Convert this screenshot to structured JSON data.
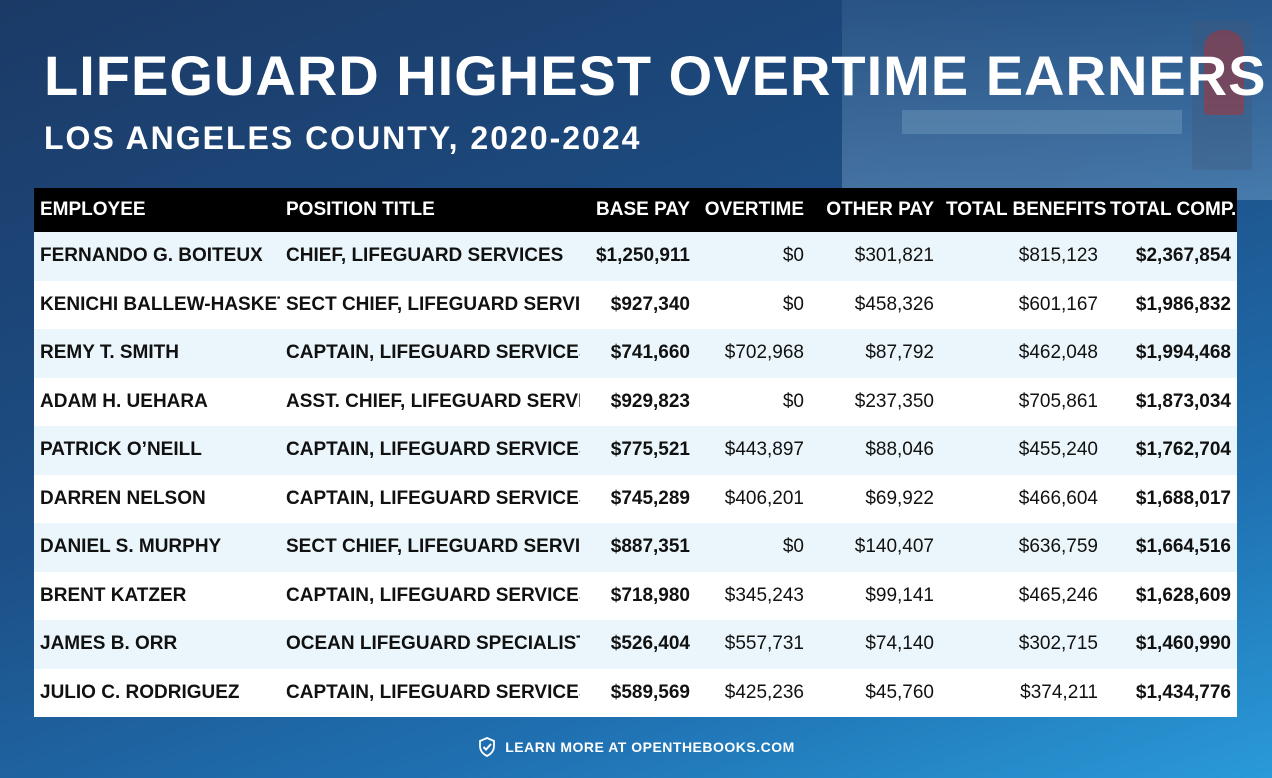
{
  "title": "LIFEGUARD HIGHEST OVERTIME EARNERS",
  "subtitle": "LOS ANGELES COUNTY, 2020-2024",
  "footer": {
    "text": "LEARN MORE AT OPENTHEBOOKS.COM",
    "icon": "checkmark-shield-icon"
  },
  "colors": {
    "header_bg": "#000000",
    "row_alt": "#eaf6fb",
    "background": "#1d4f86"
  },
  "chart_data": {
    "type": "table",
    "title": "LIFEGUARD HIGHEST OVERTIME EARNERS",
    "subtitle": "LOS ANGELES COUNTY, 2020-2024",
    "columns": [
      "EMPLOYEE",
      "POSITION TITLE",
      "BASE PAY",
      "OVERTIME",
      "OTHER PAY",
      "TOTAL BENEFITS",
      "TOTAL COMP."
    ],
    "rows": [
      [
        "FERNANDO G. BOITEUX",
        "CHIEF, LIFEGUARD SERVICES",
        "$1,250,911",
        "$0",
        "$301,821",
        "$815,123",
        "$2,367,854"
      ],
      [
        "KENICHI BALLEW-HASKETT",
        "SECT CHIEF, LIFEGUARD SERVICES",
        "$927,340",
        "$0",
        "$458,326",
        "$601,167",
        "$1,986,832"
      ],
      [
        "REMY T. SMITH",
        "CAPTAIN, LIFEGUARD SERVICES",
        "$741,660",
        "$702,968",
        "$87,792",
        "$462,048",
        "$1,994,468"
      ],
      [
        "ADAM H. UEHARA",
        "ASST. CHIEF, LIFEGUARD SERVICES",
        "$929,823",
        "$0",
        "$237,350",
        "$705,861",
        "$1,873,034"
      ],
      [
        "PATRICK O’NEILL",
        "CAPTAIN, LIFEGUARD SERVICES",
        "$775,521",
        "$443,897",
        "$88,046",
        "$455,240",
        "$1,762,704"
      ],
      [
        "DARREN NELSON",
        "CAPTAIN, LIFEGUARD SERVICES",
        "$745,289",
        "$406,201",
        "$69,922",
        "$466,604",
        "$1,688,017"
      ],
      [
        "DANIEL S. MURPHY",
        "SECT CHIEF, LIFEGUARD SERVICES",
        "$887,351",
        "$0",
        "$140,407",
        "$636,759",
        "$1,664,516"
      ],
      [
        "BRENT KATZER",
        "CAPTAIN, LIFEGUARD SERVICES",
        "$718,980",
        "$345,243",
        "$99,141",
        "$465,246",
        "$1,628,609"
      ],
      [
        "JAMES B. ORR",
        "OCEAN LIFEGUARD SPECIALIST",
        "$526,404",
        "$557,731",
        "$74,140",
        "$302,715",
        "$1,460,990"
      ],
      [
        "JULIO C. RODRIGUEZ",
        "CAPTAIN, LIFEGUARD SERVICES",
        "$589,569",
        "$425,236",
        "$45,760",
        "$374,211",
        "$1,434,776"
      ]
    ]
  }
}
